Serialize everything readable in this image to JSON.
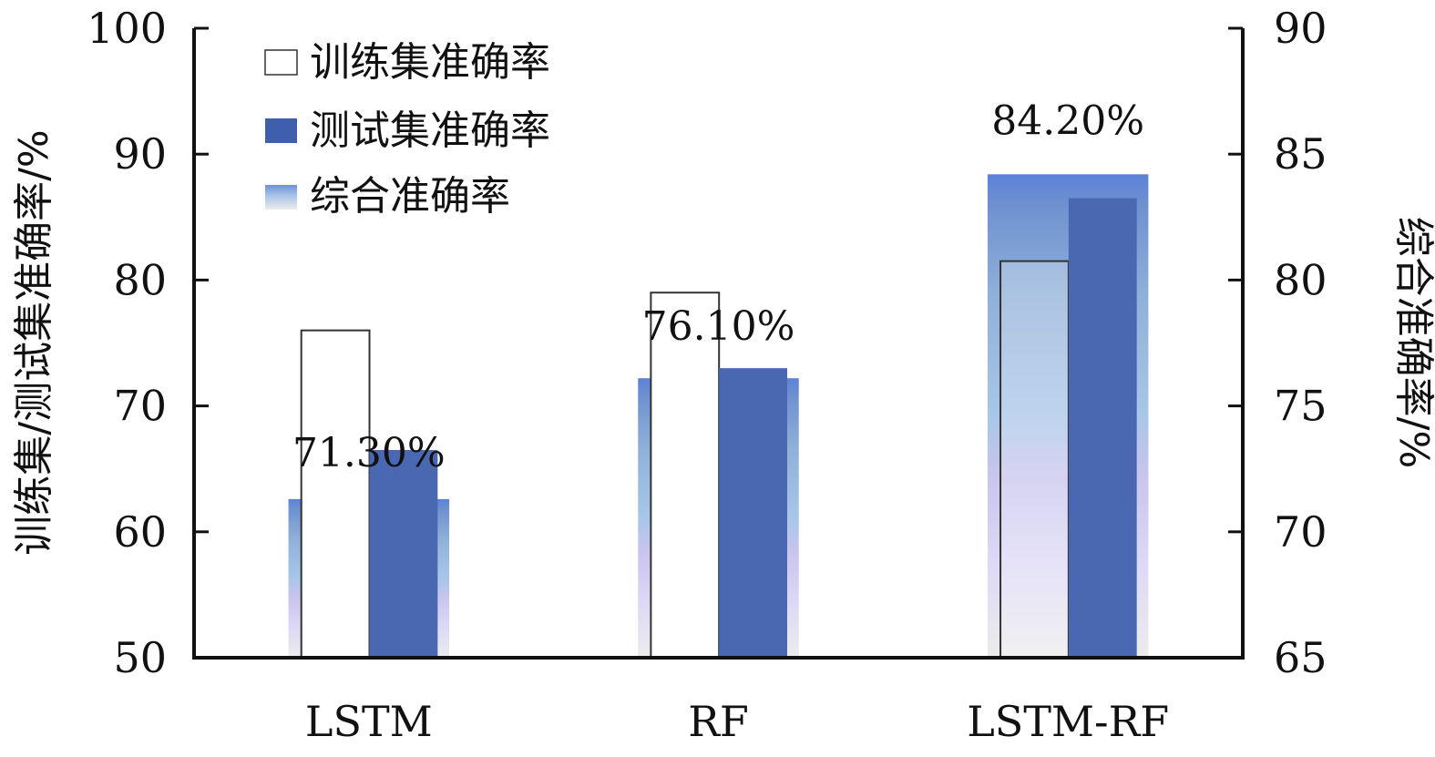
{
  "chart_data": {
    "type": "bar",
    "categories": [
      "LSTM",
      "RF",
      "LSTM-RF"
    ],
    "series": [
      {
        "name": "训练集准确率",
        "axis": "left",
        "values": [
          76,
          79,
          81.5
        ]
      },
      {
        "name": "测试集准确率",
        "axis": "left",
        "values": [
          66.5,
          73,
          86.5
        ]
      },
      {
        "name": "综合准确率",
        "axis": "right",
        "values": [
          71.3,
          76.1,
          84.2
        ]
      }
    ],
    "data_labels": [
      "71.30%",
      "76.10%",
      "84.20%"
    ],
    "ylabel": "训练集/测试集准确率/%",
    "ylabel_right": "综合准确率/%",
    "ylim": [
      50,
      100
    ],
    "ylim_right": [
      65,
      90
    ],
    "yticks": [
      "50",
      "60",
      "70",
      "80",
      "90",
      "100"
    ],
    "yticks_right": [
      "65",
      "70",
      "75",
      "80",
      "85",
      "90"
    ],
    "legend_position": "top-left",
    "grid": false,
    "colors": {
      "train": "#ffffff",
      "test": "#4b6ab4",
      "combined_top": "#6f8fd6",
      "combined_mid": "#9fbfe0",
      "combined_low": "#d4ccf0",
      "combined_bottom": "#ececec"
    }
  }
}
